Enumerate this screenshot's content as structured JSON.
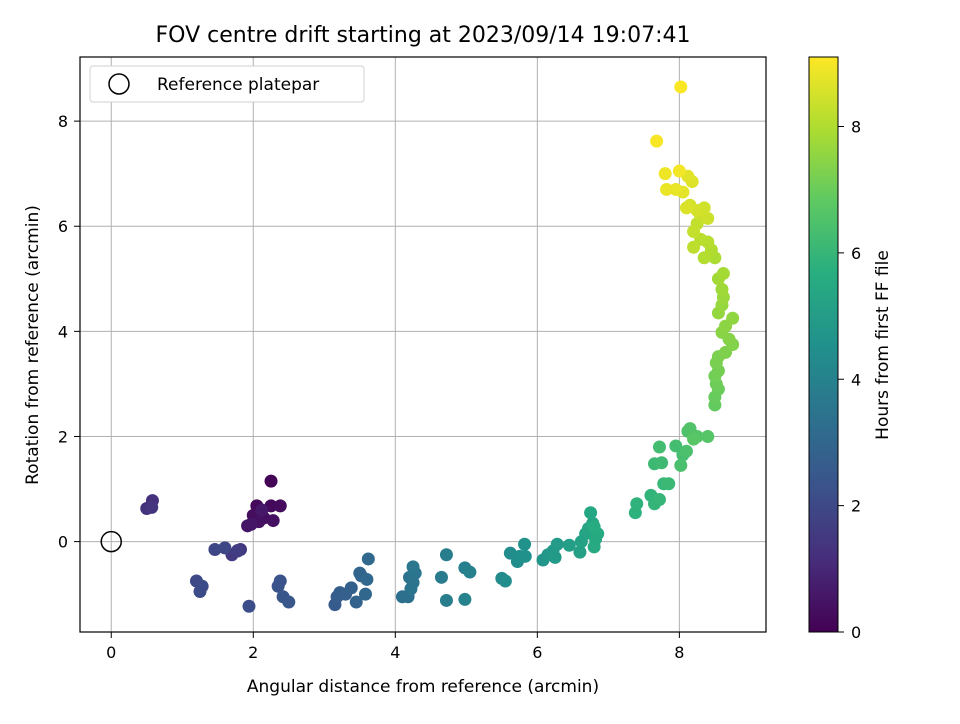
{
  "chart_data": {
    "type": "scatter",
    "title": "FOV centre drift starting at 2023/09/14 19:07:41",
    "xlabel": "Angular distance from reference (arcmin)",
    "ylabel": "Rotation from reference (arcmin)",
    "xlim": [
      -0.44,
      9.22
    ],
    "ylim": [
      -1.72,
      9.22
    ],
    "xticks": [
      "0",
      "2",
      "4",
      "6",
      "8"
    ],
    "yticks": [
      "0",
      "2",
      "4",
      "6",
      "8"
    ],
    "grid": true,
    "legend": {
      "placement": "upper-left",
      "label": "Reference platepar"
    },
    "reference_point": {
      "x": 0,
      "y": 0
    },
    "colorbar": {
      "label": "Hours from first FF file",
      "range": [
        0,
        9.1
      ],
      "ticks": [
        "0",
        "2",
        "4",
        "6",
        "8"
      ],
      "colormap": "viridis"
    },
    "points": [
      [
        2.25,
        1.15,
        0.1
      ],
      [
        2.05,
        0.68,
        0.15
      ],
      [
        2.25,
        0.68,
        0.2
      ],
      [
        2.38,
        0.68,
        0.25
      ],
      [
        2.0,
        0.5,
        0.3
      ],
      [
        2.15,
        0.45,
        0.35
      ],
      [
        2.28,
        0.4,
        0.4
      ],
      [
        2.08,
        0.38,
        0.45
      ],
      [
        1.92,
        0.3,
        0.5
      ],
      [
        1.97,
        0.33,
        0.55
      ],
      [
        2.12,
        0.6,
        0.6
      ],
      [
        0.58,
        0.78,
        1.25
      ],
      [
        0.5,
        0.63,
        1.3
      ],
      [
        0.57,
        0.65,
        1.35
      ],
      [
        1.82,
        -0.15,
        1.45
      ],
      [
        1.78,
        -0.17,
        1.5
      ],
      [
        1.7,
        -0.25,
        1.55
      ],
      [
        1.78,
        -0.18,
        1.6
      ],
      [
        1.46,
        -0.15,
        1.9
      ],
      [
        1.6,
        -0.12,
        1.95
      ],
      [
        1.2,
        -0.75,
        2.0
      ],
      [
        1.25,
        -0.95,
        2.05
      ],
      [
        1.28,
        -0.85,
        2.1
      ],
      [
        1.94,
        -1.23,
        2.15
      ],
      [
        2.38,
        -0.75,
        2.3
      ],
      [
        2.35,
        -0.85,
        2.35
      ],
      [
        2.42,
        -1.05,
        2.4
      ],
      [
        2.5,
        -1.15,
        2.45
      ],
      [
        3.15,
        -1.2,
        2.6
      ],
      [
        3.18,
        -1.05,
        2.65
      ],
      [
        3.22,
        -0.97,
        2.7
      ],
      [
        3.3,
        -1.0,
        2.75
      ],
      [
        3.38,
        -0.88,
        2.8
      ],
      [
        3.45,
        -1.15,
        2.85
      ],
      [
        3.52,
        -0.65,
        2.9
      ],
      [
        3.5,
        -0.6,
        2.95
      ],
      [
        3.58,
        -1.0,
        3.0
      ],
      [
        3.6,
        -0.72,
        3.05
      ],
      [
        3.62,
        -0.33,
        3.1
      ],
      [
        4.1,
        -1.05,
        3.3
      ],
      [
        4.18,
        -1.05,
        3.35
      ],
      [
        4.2,
        -0.68,
        3.4
      ],
      [
        4.25,
        -0.78,
        3.45
      ],
      [
        4.22,
        -0.9,
        3.5
      ],
      [
        4.28,
        -0.6,
        3.55
      ],
      [
        4.25,
        -0.48,
        3.6
      ],
      [
        4.65,
        -0.68,
        3.75
      ],
      [
        4.72,
        -0.25,
        3.8
      ],
      [
        4.72,
        -1.12,
        3.85
      ],
      [
        4.98,
        -0.5,
        3.9
      ],
      [
        5.05,
        -0.58,
        3.95
      ],
      [
        4.98,
        -1.1,
        4.0
      ],
      [
        5.5,
        -0.7,
        4.3
      ],
      [
        5.55,
        -0.75,
        4.35
      ],
      [
        5.62,
        -0.22,
        4.4
      ],
      [
        5.72,
        -0.38,
        4.45
      ],
      [
        5.75,
        -0.28,
        4.5
      ],
      [
        5.83,
        -0.28,
        4.55
      ],
      [
        5.82,
        -0.05,
        4.6
      ],
      [
        6.08,
        -0.35,
        4.75
      ],
      [
        6.15,
        -0.25,
        4.8
      ],
      [
        6.22,
        -0.18,
        4.85
      ],
      [
        6.25,
        -0.3,
        4.9
      ],
      [
        6.28,
        -0.05,
        4.95
      ],
      [
        6.45,
        -0.07,
        5.05
      ],
      [
        6.6,
        -0.2,
        5.15
      ],
      [
        6.62,
        0.0,
        5.2
      ],
      [
        6.68,
        0.15,
        5.25
      ],
      [
        6.72,
        0.25,
        5.3
      ],
      [
        6.78,
        0.35,
        5.35
      ],
      [
        6.75,
        0.55,
        5.4
      ],
      [
        6.82,
        0.05,
        5.45
      ],
      [
        6.8,
        -0.1,
        5.5
      ],
      [
        6.85,
        0.15,
        5.55
      ],
      [
        6.8,
        0.28,
        5.6
      ],
      [
        7.38,
        0.55,
        5.8
      ],
      [
        7.4,
        0.72,
        5.85
      ],
      [
        7.6,
        0.88,
        5.9
      ],
      [
        7.65,
        0.72,
        5.95
      ],
      [
        7.72,
        0.8,
        6.0
      ],
      [
        7.78,
        1.1,
        6.05
      ],
      [
        7.85,
        1.1,
        6.1
      ],
      [
        7.65,
        1.48,
        6.15
      ],
      [
        7.75,
        1.5,
        6.2
      ],
      [
        7.72,
        1.8,
        6.25
      ],
      [
        7.95,
        1.82,
        6.3
      ],
      [
        8.05,
        1.65,
        6.35
      ],
      [
        8.02,
        1.45,
        6.4
      ],
      [
        8.1,
        1.72,
        6.45
      ],
      [
        8.12,
        2.1,
        6.5
      ],
      [
        8.15,
        2.15,
        6.55
      ],
      [
        8.25,
        2.0,
        6.6
      ],
      [
        8.4,
        2.0,
        6.65
      ],
      [
        8.2,
        1.95,
        6.7
      ],
      [
        8.5,
        2.6,
        6.9
      ],
      [
        8.5,
        2.75,
        6.95
      ],
      [
        8.55,
        2.9,
        7.0
      ],
      [
        8.52,
        3.0,
        7.05
      ],
      [
        8.5,
        3.15,
        7.1
      ],
      [
        8.55,
        3.25,
        7.15
      ],
      [
        8.52,
        3.4,
        7.2
      ],
      [
        8.55,
        3.52,
        7.25
      ],
      [
        8.65,
        3.6,
        7.3
      ],
      [
        8.75,
        3.75,
        7.35
      ],
      [
        8.7,
        3.85,
        7.4
      ],
      [
        8.6,
        3.98,
        7.45
      ],
      [
        8.65,
        4.1,
        7.5
      ],
      [
        8.75,
        4.25,
        7.55
      ],
      [
        8.55,
        4.35,
        7.6
      ],
      [
        8.6,
        4.5,
        7.65
      ],
      [
        8.62,
        4.65,
        7.7
      ],
      [
        8.6,
        4.8,
        7.75
      ],
      [
        8.55,
        5.0,
        7.8
      ],
      [
        8.62,
        5.1,
        7.85
      ],
      [
        8.5,
        5.4,
        7.95
      ],
      [
        8.45,
        5.55,
        8.0
      ],
      [
        8.35,
        5.4,
        8.05
      ],
      [
        8.4,
        5.7,
        8.1
      ],
      [
        8.3,
        5.75,
        8.15
      ],
      [
        8.2,
        5.6,
        8.2
      ],
      [
        8.25,
        6.05,
        8.25
      ],
      [
        8.2,
        5.9,
        8.3
      ],
      [
        8.3,
        6.2,
        8.35
      ],
      [
        8.4,
        6.15,
        8.4
      ],
      [
        8.35,
        6.35,
        8.45
      ],
      [
        8.25,
        6.3,
        8.5
      ],
      [
        8.15,
        6.4,
        8.55
      ],
      [
        8.1,
        6.35,
        8.6
      ],
      [
        8.18,
        6.85,
        8.65
      ],
      [
        8.12,
        6.95,
        8.7
      ],
      [
        8.05,
        6.65,
        8.75
      ],
      [
        7.95,
        6.7,
        8.8
      ],
      [
        7.82,
        6.7,
        8.85
      ],
      [
        7.8,
        7.0,
        8.9
      ],
      [
        8.0,
        7.05,
        8.95
      ],
      [
        7.68,
        7.62,
        9.0
      ],
      [
        8.02,
        8.65,
        9.05
      ]
    ]
  }
}
